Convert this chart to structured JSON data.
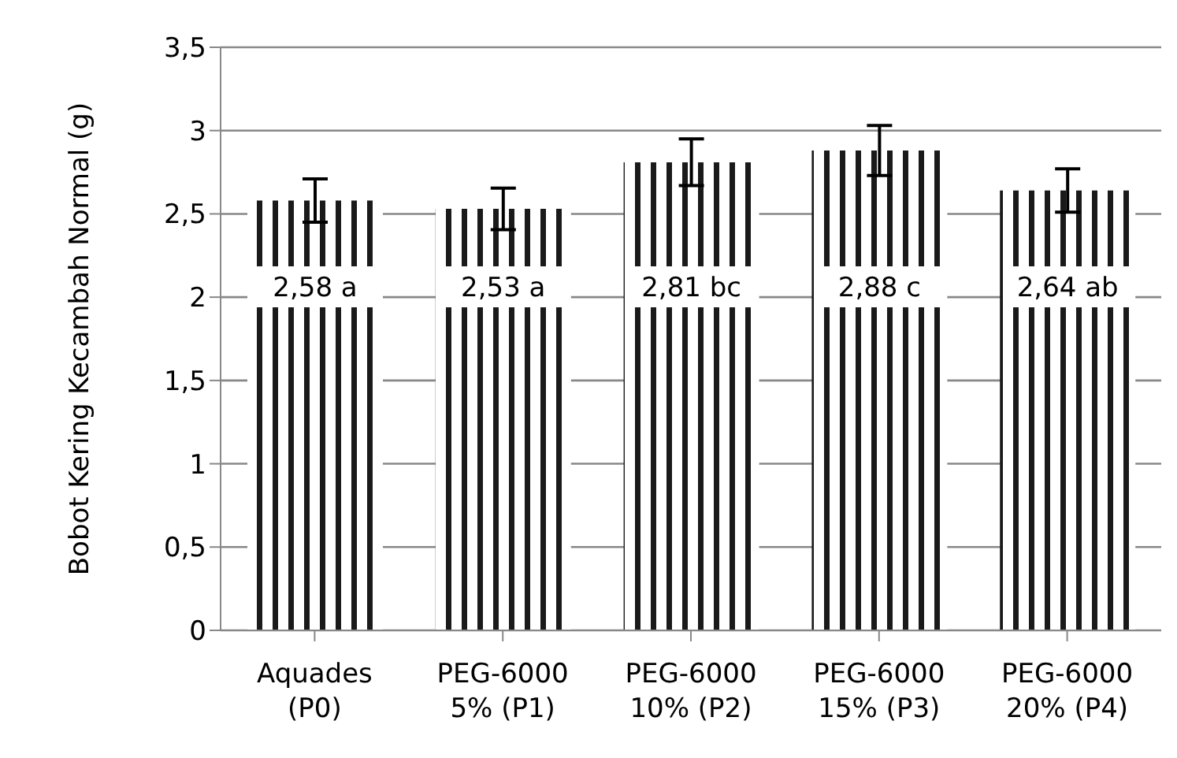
{
  "chart_data": {
    "type": "bar",
    "ylabel": "Bobot Kering Kecambah Normal (g)",
    "categories": [
      "Aquades (P0)",
      "PEG-6000 5% (P1)",
      "PEG-6000 10% (P2)",
      "PEG-6000 15% (P3)",
      "PEG-6000 20% (P4)"
    ],
    "values": [
      2.58,
      2.53,
      2.81,
      2.88,
      2.64
    ],
    "errors": [
      0.13,
      0.125,
      0.14,
      0.15,
      0.13
    ],
    "value_labels": [
      "2,58 a",
      "2,53 a",
      "2,81 bc",
      "2,88 c",
      "2,64 ab"
    ],
    "color": "#1a1a1a",
    "ylim": [
      0,
      3.5
    ],
    "yticks": [
      0,
      {
        "value": 0.5,
        "label": "0,5"
      },
      1,
      {
        "value": 1.5,
        "label": "1,5"
      },
      2,
      {
        "value": 2.5,
        "label": "2,5"
      },
      3,
      {
        "value": 3.5,
        "label": "3,5"
      }
    ],
    "grid": "y",
    "legend": false
  }
}
